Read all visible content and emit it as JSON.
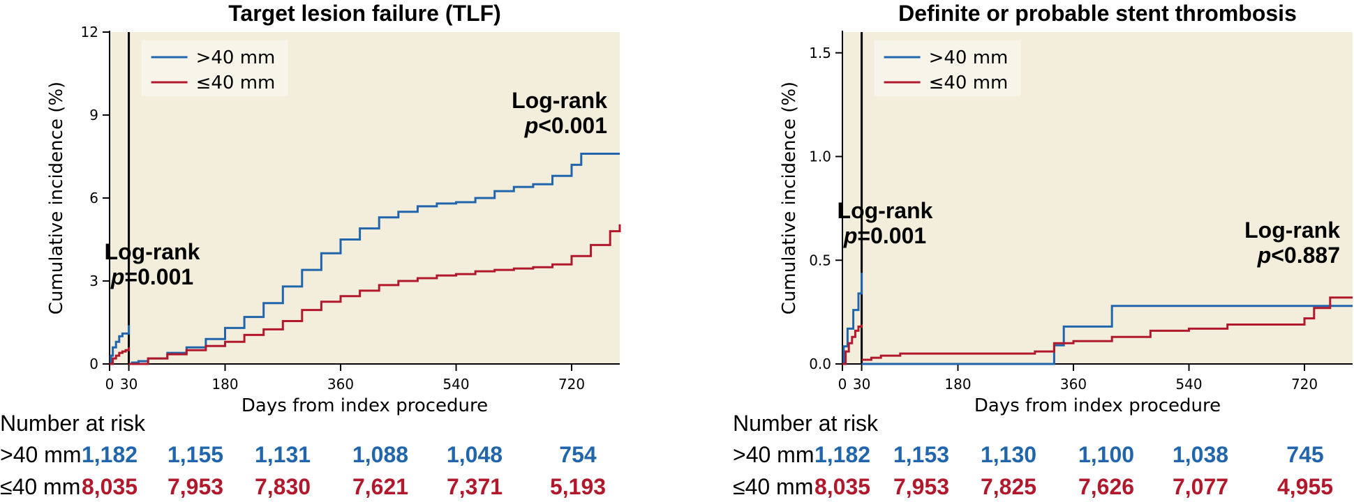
{
  "colors": {
    "gt40": "#2166ac",
    "le40": "#b2182b",
    "background": "#f3eedb"
  },
  "chart_data": [
    {
      "type": "line",
      "title": "Target lesion failure (TLF)",
      "xlabel": "Days from index procedure",
      "ylabel": "Cumulative incidence (%)",
      "xlim": [
        0,
        795
      ],
      "ylim": [
        0,
        12
      ],
      "xticks": [
        0,
        30,
        180,
        360,
        540,
        720
      ],
      "yticks": [
        0,
        3,
        6,
        9,
        12
      ],
      "ytick_labels": [
        "0",
        "3",
        "6",
        "9",
        "12"
      ],
      "landmark_day": 30,
      "legend": {
        "placement": "top-left",
        "entries": [
          ">40 mm",
          "≤40 mm"
        ]
      },
      "annotations": [
        {
          "line1": "Log-rank",
          "line2_italic": "p",
          "line2_rest": "=0.001",
          "position": "early-segment"
        },
        {
          "line1": "Log-rank",
          "line2_italic": "p",
          "line2_rest": "<0.001",
          "position": "late-segment"
        }
      ],
      "series": [
        {
          "name": ">40 mm",
          "color_key": "gt40",
          "segments": [
            [
              [
                0,
                0
              ],
              [
                2,
                0.3
              ],
              [
                5,
                0.6
              ],
              [
                10,
                0.8
              ],
              [
                15,
                1.0
              ],
              [
                20,
                1.1
              ],
              [
                25,
                1.1
              ],
              [
                30,
                1.2
              ],
              [
                30,
                1.4
              ]
            ],
            [
              [
                30,
                0
              ],
              [
                35,
                0.05
              ],
              [
                45,
                0.1
              ],
              [
                60,
                0.2
              ],
              [
                90,
                0.4
              ],
              [
                120,
                0.6
              ],
              [
                150,
                0.9
              ],
              [
                180,
                1.3
              ],
              [
                210,
                1.7
              ],
              [
                240,
                2.2
              ],
              [
                270,
                2.8
              ],
              [
                300,
                3.4
              ],
              [
                330,
                4.0
              ],
              [
                360,
                4.5
              ],
              [
                390,
                4.9
              ],
              [
                420,
                5.3
              ],
              [
                450,
                5.5
              ],
              [
                480,
                5.7
              ],
              [
                510,
                5.8
              ],
              [
                540,
                5.85
              ],
              [
                570,
                6.0
              ],
              [
                600,
                6.25
              ],
              [
                630,
                6.4
              ],
              [
                660,
                6.5
              ],
              [
                690,
                6.8
              ],
              [
                720,
                7.2
              ],
              [
                735,
                7.6
              ],
              [
                795,
                7.6
              ]
            ]
          ]
        },
        {
          "name": "≤40 mm",
          "color_key": "le40",
          "segments": [
            [
              [
                0,
                0
              ],
              [
                5,
                0.2
              ],
              [
                10,
                0.3
              ],
              [
                15,
                0.4
              ],
              [
                20,
                0.45
              ],
              [
                25,
                0.5
              ],
              [
                30,
                0.55
              ],
              [
                30,
                0.6
              ]
            ],
            [
              [
                30,
                0
              ],
              [
                60,
                0.2
              ],
              [
                90,
                0.35
              ],
              [
                120,
                0.5
              ],
              [
                150,
                0.65
              ],
              [
                180,
                0.8
              ],
              [
                210,
                1.05
              ],
              [
                240,
                1.25
              ],
              [
                270,
                1.55
              ],
              [
                300,
                1.95
              ],
              [
                330,
                2.25
              ],
              [
                360,
                2.45
              ],
              [
                390,
                2.65
              ],
              [
                420,
                2.85
              ],
              [
                450,
                3.0
              ],
              [
                480,
                3.1
              ],
              [
                510,
                3.2
              ],
              [
                540,
                3.25
              ],
              [
                570,
                3.35
              ],
              [
                600,
                3.4
              ],
              [
                630,
                3.45
              ],
              [
                660,
                3.5
              ],
              [
                690,
                3.6
              ],
              [
                720,
                3.9
              ],
              [
                750,
                4.3
              ],
              [
                780,
                4.8
              ],
              [
                795,
                5.05
              ]
            ]
          ]
        }
      ],
      "risk_table": {
        "title": "Number at risk",
        "rows": [
          {
            "label": ">40 mm",
            "color_key": "gt40",
            "values": [
              "1,182",
              "1,155",
              "1,131",
              "1,088",
              "1,048",
              "754"
            ]
          },
          {
            "label": "≤40 mm",
            "color_key": "le40",
            "values": [
              "8,035",
              "7,953",
              "7,830",
              "7,621",
              "7,371",
              "5,193"
            ]
          }
        ]
      }
    },
    {
      "type": "line",
      "title": "Definite or probable stent thrombosis",
      "xlabel": "Days from index procedure",
      "ylabel": "Cumulative incidence (%)",
      "xlim": [
        0,
        795
      ],
      "ylim": [
        0,
        1.6
      ],
      "xticks": [
        0,
        30,
        180,
        360,
        540,
        720
      ],
      "yticks": [
        0,
        0.5,
        1.0,
        1.5
      ],
      "ytick_labels": [
        "0.0",
        "0.5",
        "1.0",
        "1.5"
      ],
      "landmark_day": 30,
      "legend": {
        "placement": "top-left",
        "entries": [
          ">40 mm",
          "≤40 mm"
        ]
      },
      "annotations": [
        {
          "line1": "Log-rank",
          "line2_italic": "p",
          "line2_rest": "=0.001",
          "position": "early-segment"
        },
        {
          "line1": "Log-rank",
          "line2_italic": "p",
          "line2_rest": "<0.887",
          "position": "late-segment"
        }
      ],
      "series": [
        {
          "name": ">40 mm",
          "color_key": "gt40",
          "segments": [
            [
              [
                0,
                0
              ],
              [
                2,
                0.085
              ],
              [
                8,
                0.17
              ],
              [
                17,
                0.26
              ],
              [
                25,
                0.34
              ],
              [
                30,
                0.44
              ]
            ],
            [
              [
                30,
                0
              ],
              [
                330,
                0
              ],
              [
                330,
                0.09
              ],
              [
                345,
                0.18
              ],
              [
                420,
                0.18
              ],
              [
                420,
                0.28
              ],
              [
                795,
                0.28
              ]
            ]
          ]
        },
        {
          "name": "≤40 mm",
          "color_key": "le40",
          "segments": [
            [
              [
                0,
                0
              ],
              [
                5,
                0.06
              ],
              [
                10,
                0.1
              ],
              [
                15,
                0.13
              ],
              [
                20,
                0.16
              ],
              [
                25,
                0.18
              ],
              [
                30,
                0.19
              ]
            ],
            [
              [
                30,
                0.02
              ],
              [
                45,
                0.03
              ],
              [
                60,
                0.04
              ],
              [
                90,
                0.05
              ],
              [
                180,
                0.05
              ],
              [
                300,
                0.06
              ],
              [
                330,
                0.1
              ],
              [
                360,
                0.11
              ],
              [
                420,
                0.13
              ],
              [
                480,
                0.16
              ],
              [
                540,
                0.17
              ],
              [
                600,
                0.19
              ],
              [
                720,
                0.22
              ],
              [
                735,
                0.27
              ],
              [
                760,
                0.32
              ],
              [
                795,
                0.32
              ]
            ]
          ]
        }
      ],
      "risk_table": {
        "title": "Number at risk",
        "rows": [
          {
            "label": ">40 mm",
            "color_key": "gt40",
            "values": [
              "1,182",
              "1,153",
              "1,130",
              "1,100",
              "1,038",
              "745"
            ]
          },
          {
            "label": "≤40 mm",
            "color_key": "le40",
            "values": [
              "8,035",
              "7,953",
              "7,825",
              "7,626",
              "7,077",
              "4,955"
            ]
          }
        ]
      }
    }
  ]
}
